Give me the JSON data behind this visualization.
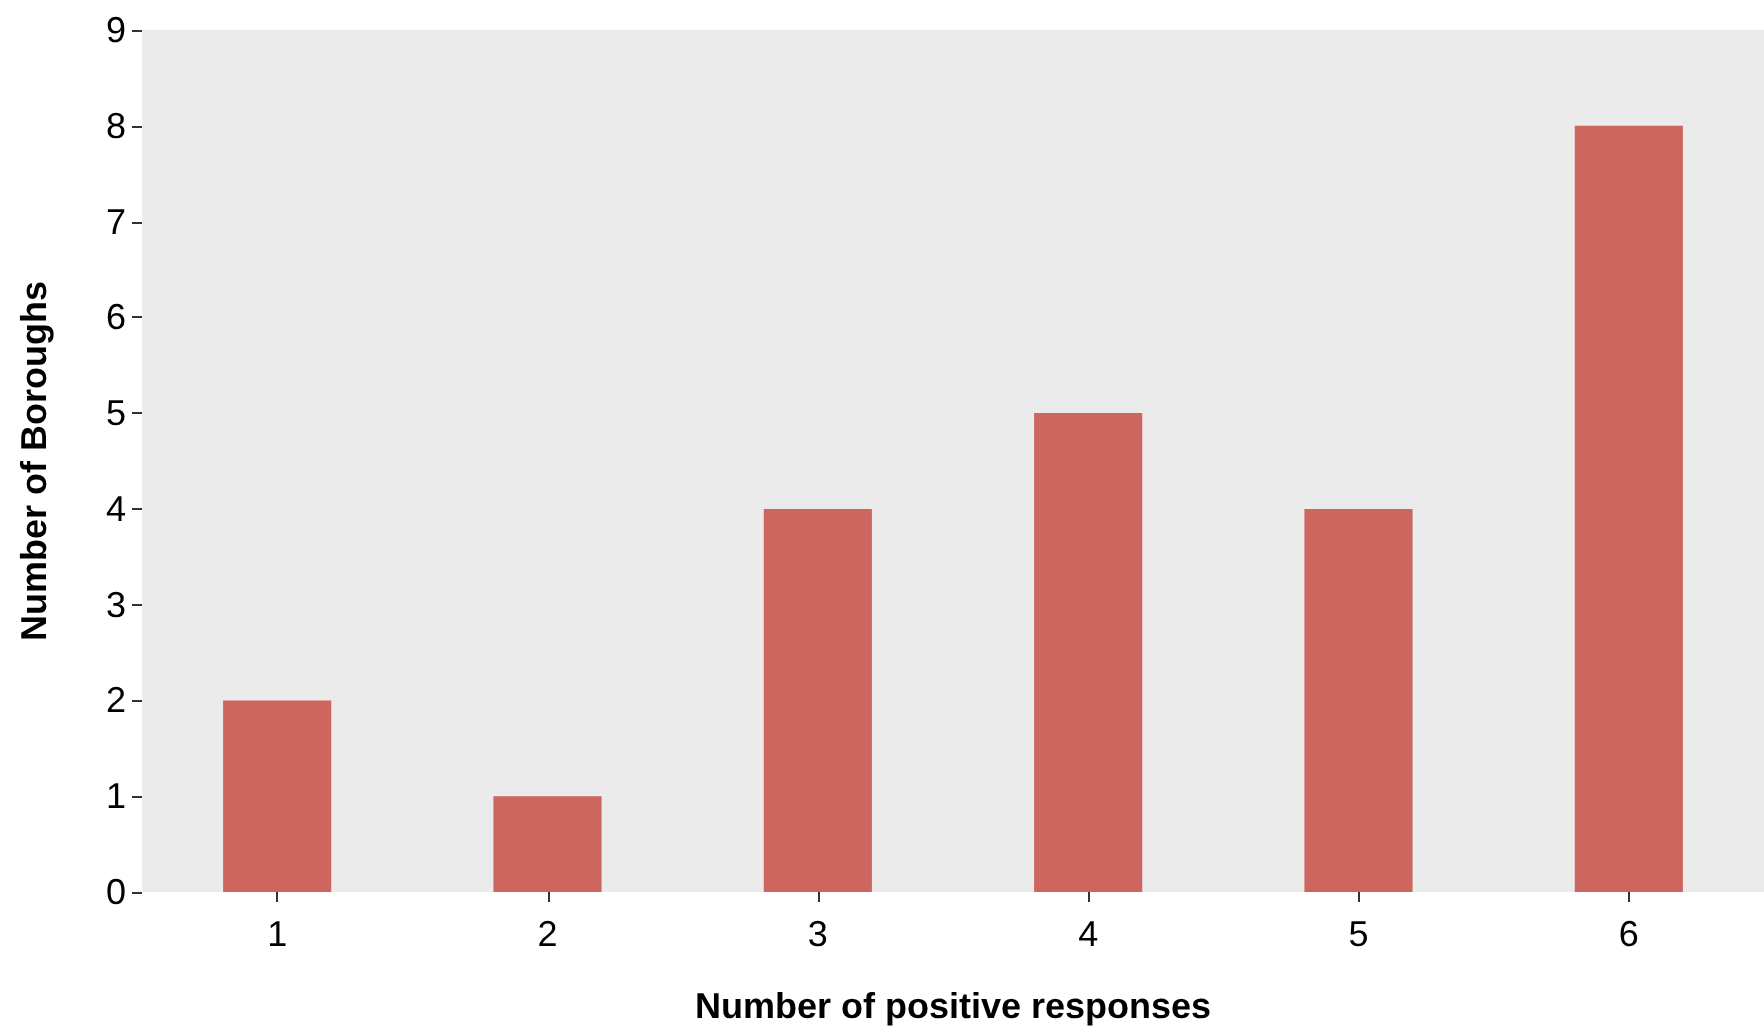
{
  "chart_data": {
    "type": "bar",
    "xlabel": "Number of positive responses",
    "ylabel": "Number of Boroughs",
    "categories": [
      "1",
      "2",
      "3",
      "4",
      "5",
      "6"
    ],
    "values": [
      2,
      1,
      4,
      5,
      4,
      8
    ],
    "color": "#cd665f",
    "ylim": [
      0,
      9
    ],
    "yticks": [
      0,
      1,
      2,
      3,
      4,
      5,
      6,
      7,
      8,
      9
    ],
    "grid": false
  }
}
